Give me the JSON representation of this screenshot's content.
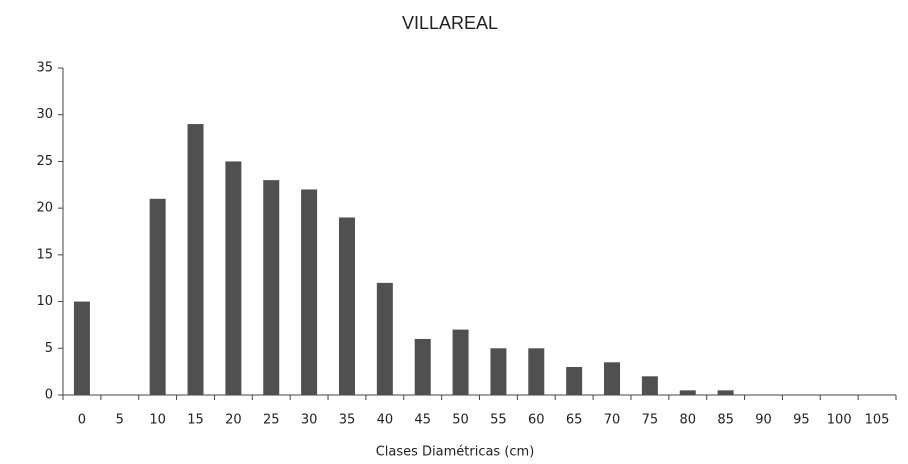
{
  "chart_data": {
    "type": "bar",
    "title": "VILLAREAL",
    "x_label": "Clases Diamétricas (cm)",
    "categories": [
      "0",
      "5",
      "10",
      "15",
      "20",
      "25",
      "30",
      "35",
      "40",
      "45",
      "50",
      "55",
      "60",
      "65",
      "70",
      "75",
      "80",
      "85",
      "90",
      "95",
      "100",
      "105"
    ],
    "values": [
      10,
      0,
      21,
      29,
      25,
      23,
      22,
      19,
      12,
      6,
      7,
      5,
      5,
      3,
      3.5,
      2,
      0.5,
      0.5,
      0,
      0,
      0,
      0
    ],
    "color": "#505050",
    "ylim": [
      0,
      35
    ],
    "yticks": [
      0,
      5,
      10,
      15,
      20,
      25,
      30,
      35
    ],
    "grid": false
  }
}
